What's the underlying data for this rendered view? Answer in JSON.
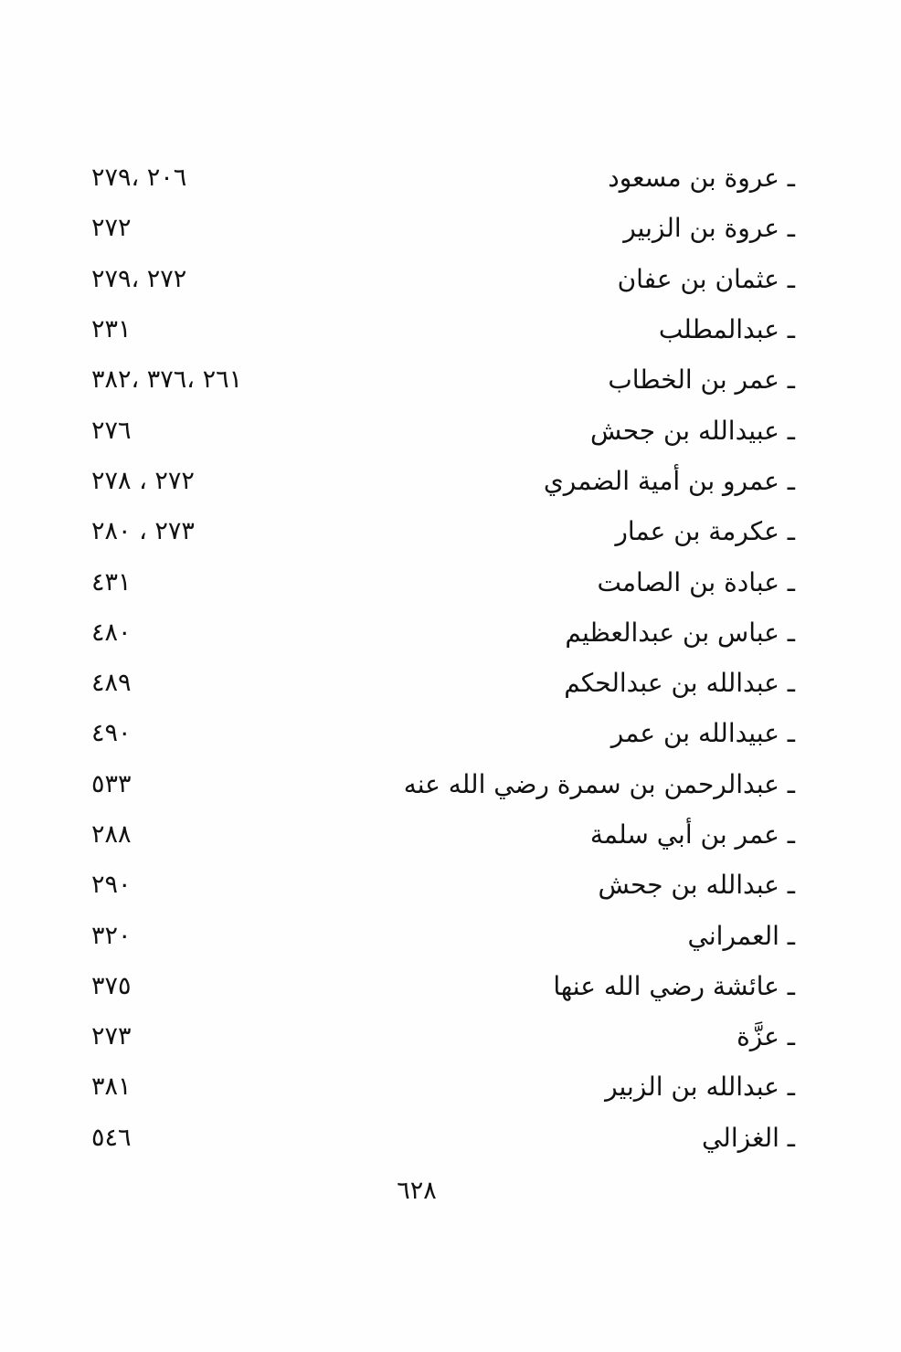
{
  "index": {
    "dash": "ـ",
    "entries": [
      {
        "label": "عروة بن مسعود",
        "pages": "٢٧٩، ٢٠٦"
      },
      {
        "label": "عروة بن الزبير",
        "pages": "٢٧٢"
      },
      {
        "label": "عثمان بن عفان",
        "pages": "٢٧٩، ٢٧٢"
      },
      {
        "label": "عبدالمطلب",
        "pages": "٢٣١"
      },
      {
        "label": "عمر بن الخطاب",
        "pages": "٣٨٢، ٣٧٦، ٢٦١"
      },
      {
        "label": "عبيدالله بن جحش",
        "pages": "٢٧٦"
      },
      {
        "label": "عمرو بن أمية الضمري",
        "pages": "٢٧٨ ، ٢٧٢"
      },
      {
        "label": "عكرمة بن عمار",
        "pages": "٢٨٠ ، ٢٧٣"
      },
      {
        "label": "عبادة بن الصامت",
        "pages": "٤٣١"
      },
      {
        "label": "عباس بن عبدالعظيم",
        "pages": "٤٨٠"
      },
      {
        "label": "عبدالله بن عبدالحكم",
        "pages": "٤٨٩"
      },
      {
        "label": "عبيدالله بن عمر",
        "pages": "٤٩٠"
      },
      {
        "label": "عبدالرحمن بن سمرة رضي الله عنه",
        "pages": "٥٣٣"
      },
      {
        "label": "عمر بن أبي سلمة",
        "pages": "٢٨٨"
      },
      {
        "label": "عبدالله بن جحش",
        "pages": "٢٩٠"
      },
      {
        "label": "العمراني",
        "pages": "٣٢٠"
      },
      {
        "label": "عائشة رضي الله عنها",
        "pages": "٣٧٥"
      },
      {
        "label": "عزَّة",
        "pages": "٢٧٣"
      },
      {
        "label": "عبدالله بن الزبير",
        "pages": "٣٨١"
      },
      {
        "label": "الغزالي",
        "pages": "٥٤٦"
      }
    ],
    "page_number": "٦٢٨"
  }
}
